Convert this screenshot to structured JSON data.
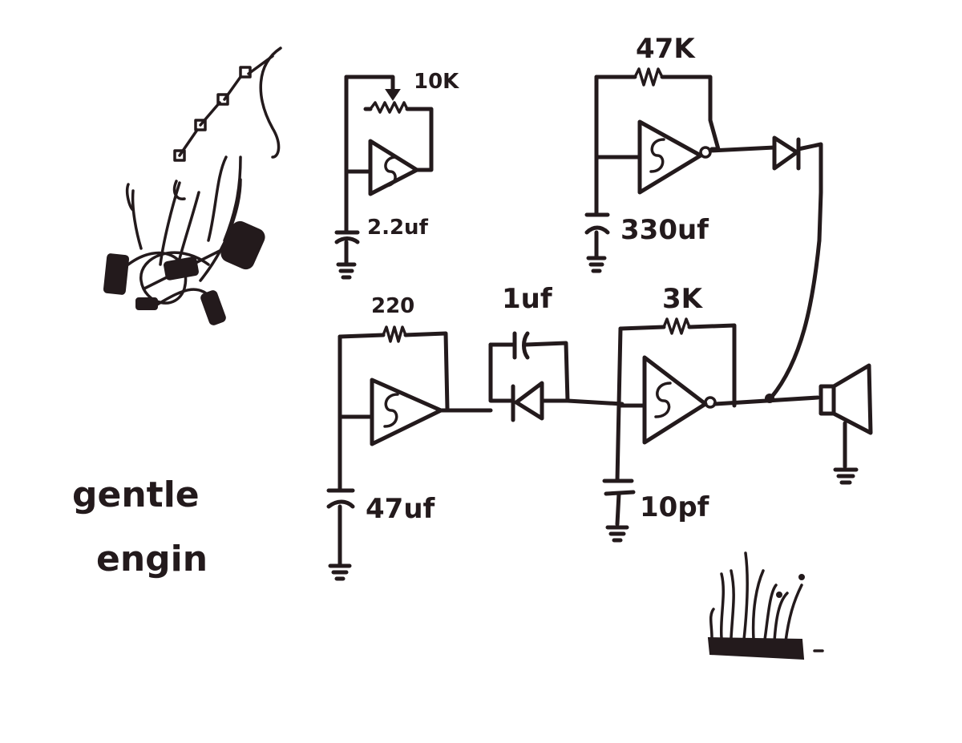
{
  "title": {
    "line1": "gentle",
    "line2": "engin"
  },
  "components": {
    "pot": "10K",
    "cap_osc1": "2.2uf",
    "res_osc2": "47K",
    "cap_osc2": "330uf",
    "res_osc3": "220",
    "cap_osc3": "47uf",
    "cap_coupling": "1uf",
    "res_osc4": "3K",
    "cap_osc4": "10pf"
  },
  "icons": [
    "wire-mess-sketch",
    "grass-sketch",
    "speaker-icon",
    "schmitt-inverter-icon",
    "diode-icon",
    "ground-icon"
  ],
  "colors": {
    "ink": "#231a1c",
    "paper": "#ffffff"
  }
}
